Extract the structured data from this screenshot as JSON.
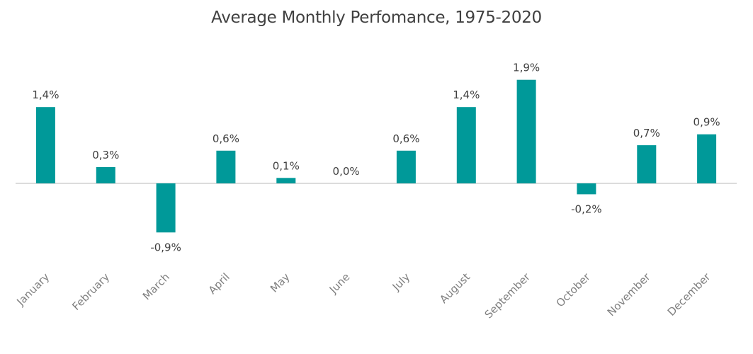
{
  "chart_data": {
    "type": "bar",
    "title": "Average Monthly Perfomance, 1975-2020",
    "categories": [
      "January",
      "February",
      "March",
      "April",
      "May",
      "June",
      "July",
      "August",
      "September",
      "October",
      "November",
      "December"
    ],
    "values": [
      1.4,
      0.3,
      -0.9,
      0.6,
      0.1,
      0.0,
      0.6,
      1.4,
      1.9,
      -0.2,
      0.7,
      0.9
    ],
    "data_labels": [
      "1,4%",
      "0,3%",
      "-0,9%",
      "0,6%",
      "0,1%",
      "0,0%",
      "0,6%",
      "1,4%",
      "1,9%",
      "-0,2%",
      "0,7%",
      "0,9%"
    ],
    "unit": "%",
    "xlabel": "",
    "ylabel": "",
    "ylim": [
      -1.5,
      2.4
    ],
    "grid": false,
    "legend": "none",
    "colors": {
      "bar": "#009999",
      "title": "#404040",
      "data_label": "#404040",
      "tick_label": "#7f7f7f",
      "baseline": "#d0d0d0"
    }
  }
}
